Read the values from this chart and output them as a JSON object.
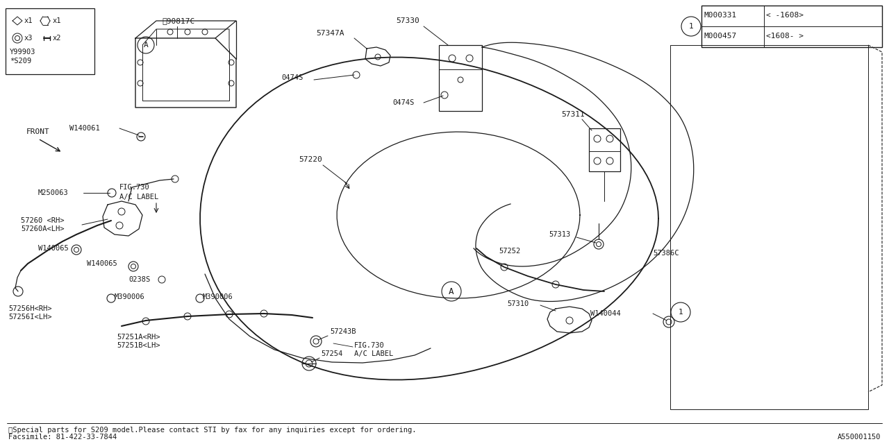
{
  "bg_color": "#ffffff",
  "line_color": "#1a1a1a",
  "footer_line1": "※Special parts for S209 model.Please contact STI by fax for any inquiries except for ordering.",
  "footer_line2": "Facsimile: 81-422-33-7844",
  "diagram_id": "A550001150",
  "figsize": [
    12.8,
    6.4
  ],
  "dpi": 100
}
